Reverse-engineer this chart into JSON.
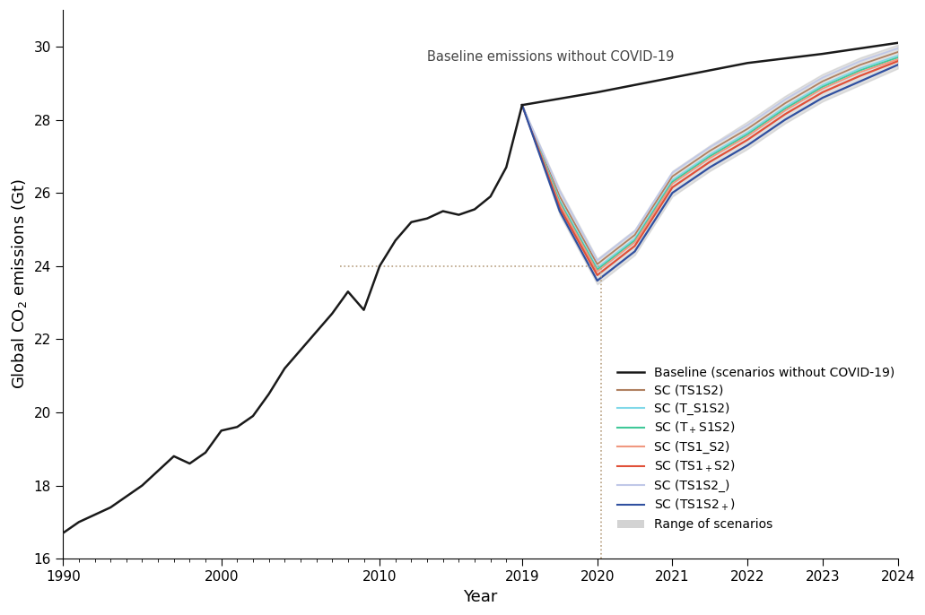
{
  "xlabel": "Year",
  "ylabel": "Global CO$_2$ emissions (Gt)",
  "ylim": [
    16,
    31.0
  ],
  "yticks": [
    16,
    18,
    20,
    22,
    24,
    26,
    28,
    30
  ],
  "baseline_color": "#1a1a1a",
  "baseline_real_x": [
    1990,
    1991,
    1992,
    1993,
    1994,
    1995,
    1996,
    1997,
    1998,
    1999,
    2000,
    2001,
    2002,
    2003,
    2004,
    2005,
    2006,
    2007,
    2008,
    2009,
    2010,
    2011,
    2012,
    2013,
    2014,
    2015,
    2016,
    2017,
    2018,
    2019
  ],
  "baseline_real_y": [
    16.7,
    17.0,
    17.2,
    17.4,
    17.7,
    18.0,
    18.4,
    18.8,
    18.6,
    18.9,
    19.5,
    19.6,
    19.9,
    20.5,
    21.2,
    21.7,
    22.2,
    22.7,
    23.3,
    22.8,
    24.0,
    24.7,
    25.2,
    25.3,
    25.5,
    25.4,
    25.55,
    25.9,
    26.7,
    28.4
  ],
  "baseline_proj_x": [
    2019,
    2020,
    2021,
    2022,
    2023,
    2024
  ],
  "baseline_proj_y": [
    28.4,
    28.75,
    29.15,
    29.55,
    29.8,
    30.1
  ],
  "dotted_color": "#b8a080",
  "scenarios": [
    {
      "name": "SC (TS1S2)",
      "color": "#b08060",
      "lw": 1.3,
      "x": [
        2019,
        2019.5,
        2020.0,
        2020.5,
        2021.0,
        2021.5,
        2022.0,
        2022.5,
        2023.0,
        2023.5,
        2024.0
      ],
      "y": [
        28.4,
        25.9,
        24.05,
        24.85,
        26.45,
        27.15,
        27.75,
        28.45,
        29.05,
        29.5,
        29.85
      ]
    },
    {
      "name": "SC (T_S1S2)",
      "color": "#80d8e8",
      "lw": 1.3,
      "x": [
        2019,
        2019.5,
        2020.0,
        2020.5,
        2021.0,
        2021.5,
        2022.0,
        2022.5,
        2023.0,
        2023.5,
        2024.0
      ],
      "y": [
        28.4,
        25.8,
        23.95,
        24.75,
        26.35,
        27.05,
        27.65,
        28.35,
        28.95,
        29.4,
        29.75
      ]
    },
    {
      "name": "SC (T+S1S2)",
      "color": "#40c898",
      "lw": 1.3,
      "x": [
        2019,
        2019.5,
        2020.0,
        2020.5,
        2021.0,
        2021.5,
        2022.0,
        2022.5,
        2023.0,
        2023.5,
        2024.0
      ],
      "y": [
        28.4,
        25.75,
        23.9,
        24.7,
        26.3,
        27.0,
        27.6,
        28.3,
        28.9,
        29.35,
        29.7
      ]
    },
    {
      "name": "SC (TS1_S2)",
      "color": "#f09880",
      "lw": 1.3,
      "x": [
        2019,
        2019.5,
        2020.0,
        2020.5,
        2021.0,
        2021.5,
        2022.0,
        2022.5,
        2023.0,
        2023.5,
        2024.0
      ],
      "y": [
        28.4,
        25.7,
        23.85,
        24.65,
        26.25,
        26.95,
        27.55,
        28.25,
        28.85,
        29.3,
        29.65
      ]
    },
    {
      "name": "SC (TS1+S2)",
      "color": "#e05038",
      "lw": 1.6,
      "x": [
        2019,
        2019.5,
        2020.0,
        2020.5,
        2021.0,
        2021.5,
        2022.0,
        2022.5,
        2023.0,
        2023.5,
        2024.0
      ],
      "y": [
        28.4,
        25.6,
        23.75,
        24.55,
        26.15,
        26.85,
        27.45,
        28.15,
        28.75,
        29.2,
        29.6
      ]
    },
    {
      "name": "SC (TS1S2_)",
      "color": "#c0c8e8",
      "lw": 1.3,
      "x": [
        2019,
        2019.5,
        2020.0,
        2020.5,
        2021.0,
        2021.5,
        2022.0,
        2022.5,
        2023.0,
        2023.5,
        2024.0
      ],
      "y": [
        28.4,
        26.05,
        24.15,
        24.95,
        26.55,
        27.25,
        27.85,
        28.55,
        29.15,
        29.6,
        29.95
      ]
    },
    {
      "name": "SC (TS1S2+)",
      "color": "#3050a0",
      "lw": 1.6,
      "x": [
        2019,
        2019.5,
        2020.0,
        2020.5,
        2021.0,
        2021.5,
        2022.0,
        2022.5,
        2023.0,
        2023.5,
        2024.0
      ],
      "y": [
        28.4,
        25.5,
        23.6,
        24.4,
        26.0,
        26.7,
        27.3,
        28.0,
        28.6,
        29.05,
        29.5
      ]
    }
  ],
  "shade_x": [
    2019,
    2019.5,
    2020.0,
    2020.5,
    2021.0,
    2021.5,
    2022.0,
    2022.5,
    2023.0,
    2023.5,
    2024.0
  ],
  "shade_upper": [
    28.4,
    26.1,
    24.2,
    25.0,
    26.6,
    27.3,
    27.95,
    28.65,
    29.25,
    29.7,
    30.05
  ],
  "shade_lower": [
    28.4,
    25.4,
    23.5,
    24.3,
    25.9,
    26.6,
    27.2,
    27.9,
    28.5,
    28.95,
    29.4
  ],
  "shade_color": "#c8c8c8",
  "shade_alpha": 0.55,
  "legend_names": [
    "Baseline (scenarios without COVID-19)",
    "SC (TS1S2)",
    "SC (T_S1S2)",
    "SC (T$_+$S1S2)",
    "SC (TS1_S2)",
    "SC (TS1$_+$S2)",
    "SC (TS1S2_)",
    "SC (TS1S2$_+$)",
    "Range of scenarios"
  ]
}
